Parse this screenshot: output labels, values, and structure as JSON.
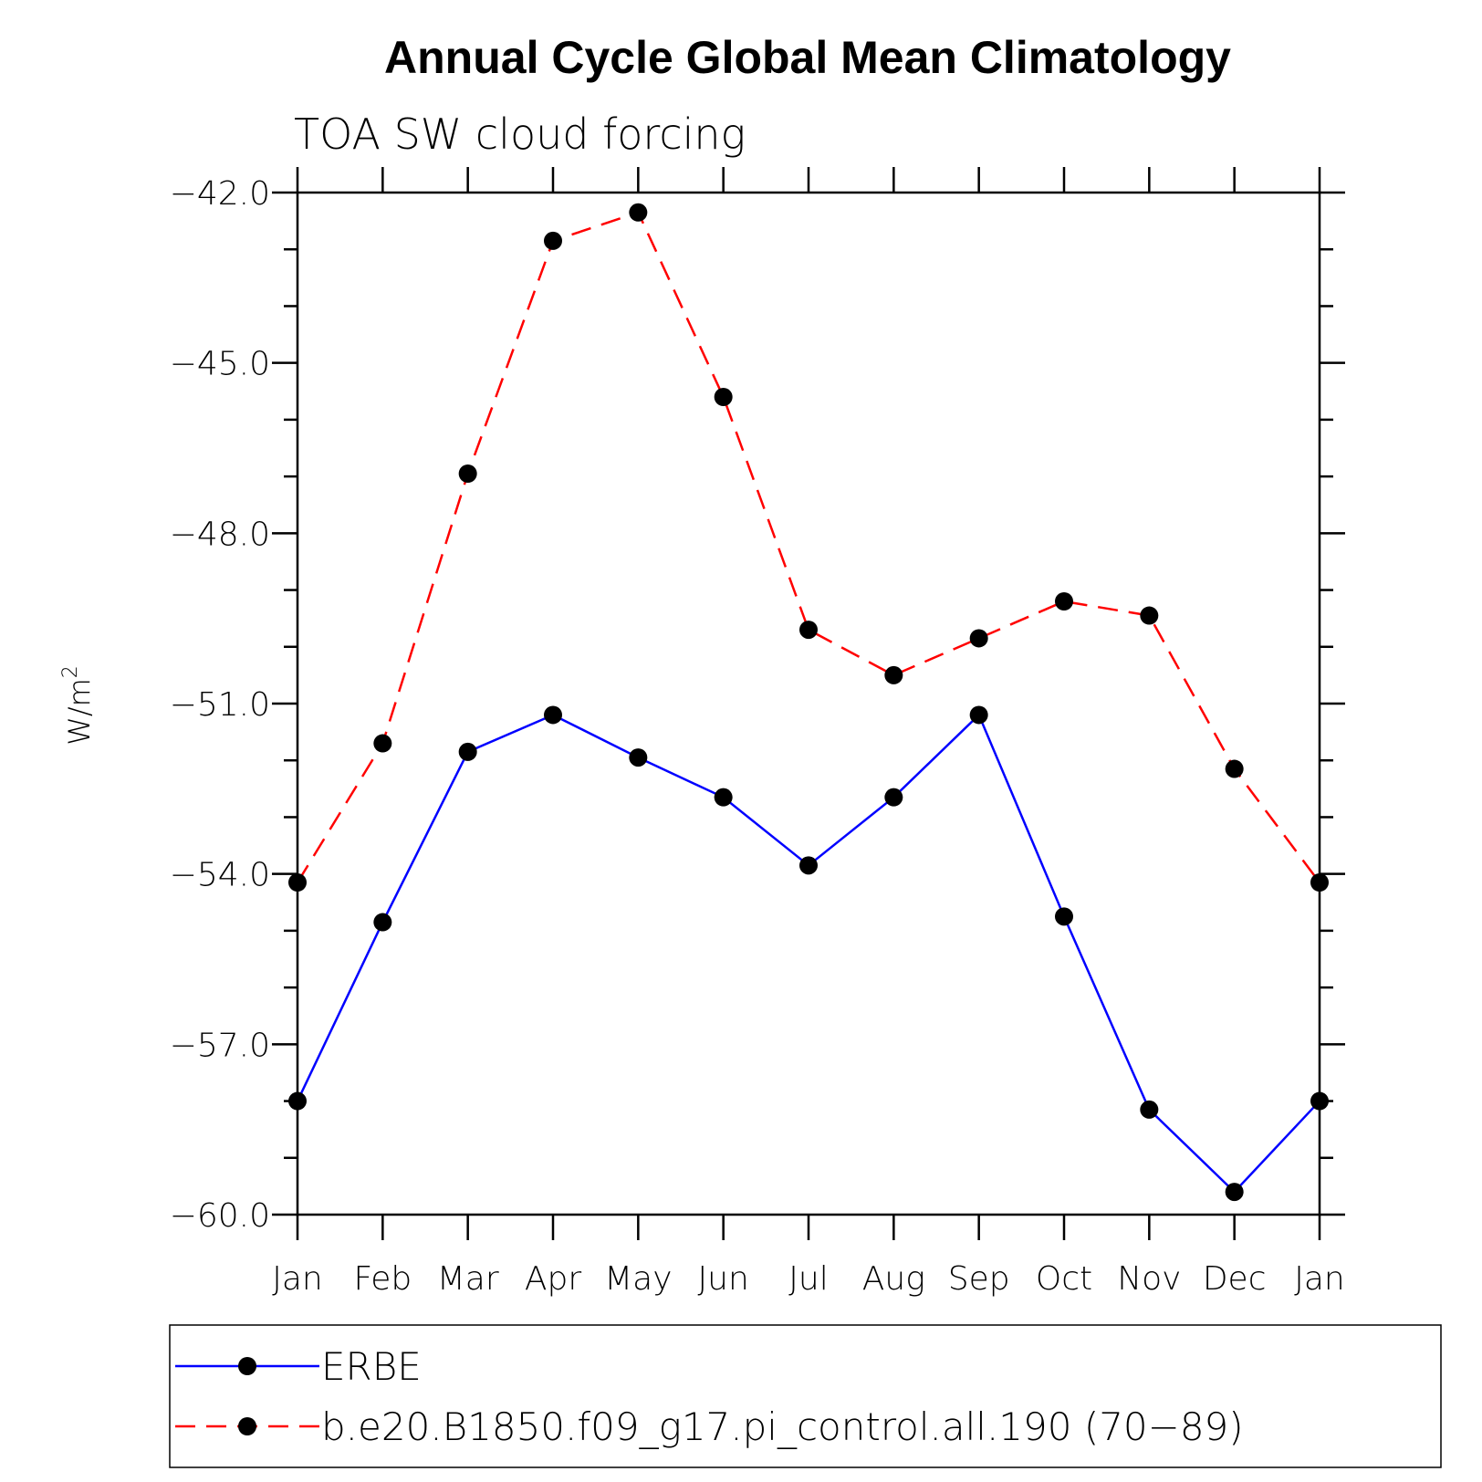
{
  "chart_data": {
    "type": "line",
    "title": "Annual Cycle Global Mean Climatology",
    "subtitle": "TOA SW cloud forcing",
    "ylabel": "W/m",
    "ylabel_superscript": "2",
    "xlabel": "",
    "categories": [
      "Jan",
      "Feb",
      "Mar",
      "Apr",
      "May",
      "Jun",
      "Jul",
      "Aug",
      "Sep",
      "Oct",
      "Nov",
      "Dec",
      "Jan"
    ],
    "ylim": [
      -60.0,
      -42.0
    ],
    "yticks": [
      -42.0,
      -45.0,
      -48.0,
      -51.0,
      -54.0,
      -57.0,
      -60.0
    ],
    "ytick_labels": [
      "−42.0",
      "−45.0",
      "−48.0",
      "−51.0",
      "−54.0",
      "−57.0",
      "−60.0"
    ],
    "grid": false,
    "legend_position": "bottom",
    "series": [
      {
        "name": "ERBE",
        "color": "#0000ff",
        "line_style": "solid",
        "marker": "filled-circle",
        "values": [
          -58.0,
          -54.85,
          -51.85,
          -51.2,
          -51.95,
          -52.65,
          -53.85,
          -52.65,
          -51.2,
          -54.75,
          -58.15,
          -59.6,
          -58.0
        ]
      },
      {
        "name": "b.e20.B1850.f09_g17.pi_control.all.190 (70−89)",
        "color": "#ff0000",
        "line_style": "dashed",
        "marker": "filled-circle",
        "values": [
          -54.15,
          -51.7,
          -46.95,
          -42.85,
          -42.35,
          -45.6,
          -49.7,
          -50.5,
          -49.85,
          -49.2,
          -49.45,
          -52.15,
          -54.15
        ]
      }
    ]
  }
}
